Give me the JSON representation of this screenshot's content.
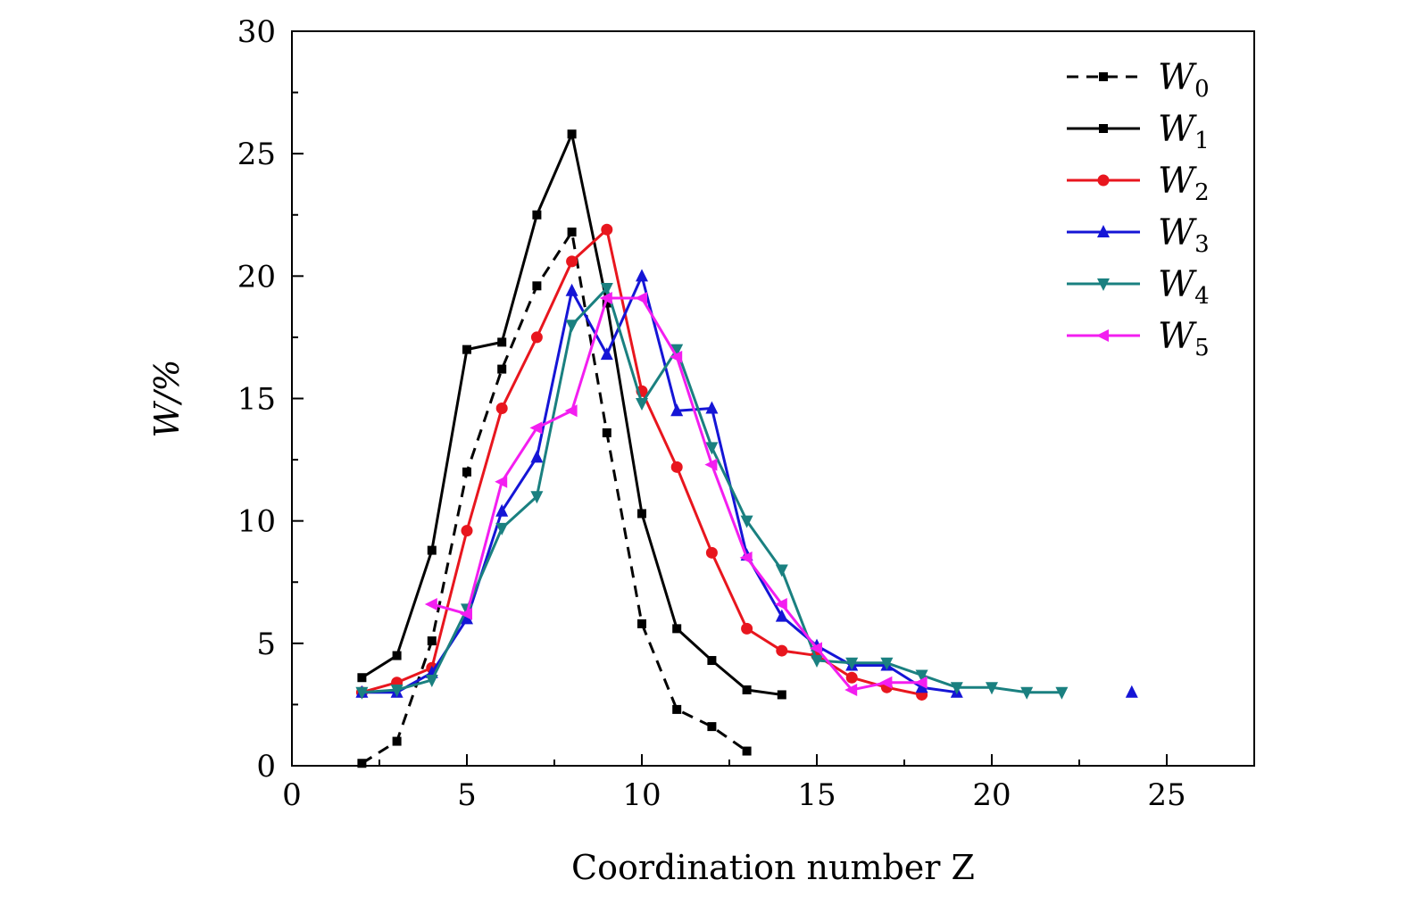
{
  "chart_data": {
    "type": "line",
    "title": "",
    "xlabel": "Coordination number Z",
    "ylabel": "W/%",
    "xlim": [
      0,
      27.5
    ],
    "ylim": [
      0,
      30
    ],
    "xticks": [
      0,
      5,
      10,
      15,
      20,
      25
    ],
    "yticks": [
      0,
      5,
      10,
      15,
      20,
      25,
      30
    ],
    "legend_position": "top-right",
    "series": [
      {
        "name": "W0",
        "base": "W",
        "sub": "0",
        "color": "#000000",
        "dash": true,
        "marker": "square",
        "x": [
          2,
          3,
          4,
          5,
          6,
          7,
          8,
          9,
          10,
          11,
          12,
          13
        ],
        "y": [
          0.1,
          1.0,
          5.1,
          12.0,
          16.2,
          19.6,
          21.8,
          13.6,
          5.8,
          2.3,
          1.6,
          0.6
        ]
      },
      {
        "name": "W1",
        "base": "W",
        "sub": "1",
        "color": "#000000",
        "dash": false,
        "marker": "square",
        "x": [
          2,
          3,
          4,
          5,
          6,
          7,
          8,
          9,
          10,
          11,
          12,
          13,
          14
        ],
        "y": [
          3.6,
          4.5,
          8.8,
          17.0,
          17.3,
          22.5,
          25.8,
          18.9,
          10.3,
          5.6,
          4.3,
          3.1,
          2.9
        ]
      },
      {
        "name": "W2",
        "base": "W",
        "sub": "2",
        "color": "#e8161e",
        "dash": false,
        "marker": "circle",
        "x": [
          2,
          3,
          4,
          5,
          6,
          7,
          8,
          9,
          10,
          11,
          12,
          13,
          14,
          15,
          16,
          17,
          18
        ],
        "y": [
          3.0,
          3.4,
          4.0,
          9.6,
          14.6,
          17.5,
          20.6,
          21.9,
          15.3,
          12.2,
          8.7,
          5.6,
          4.7,
          4.5,
          3.6,
          3.2,
          2.9
        ]
      },
      {
        "name": "W3",
        "base": "W",
        "sub": "3",
        "color": "#1515d6",
        "dash": false,
        "marker": "triangle-up",
        "x": [
          2,
          3,
          4,
          5,
          6,
          7,
          8,
          9,
          10,
          11,
          12,
          13,
          14,
          15,
          16,
          17,
          18,
          19,
          24
        ],
        "y": [
          3.0,
          3.0,
          3.8,
          6.0,
          10.4,
          12.6,
          19.4,
          16.8,
          20.0,
          14.5,
          14.6,
          8.6,
          6.1,
          4.9,
          4.1,
          4.1,
          3.2,
          3.0,
          3.0
        ]
      },
      {
        "name": "W4",
        "base": "W",
        "sub": "4",
        "color": "#1a8080",
        "dash": false,
        "marker": "triangle-down",
        "x": [
          2,
          3,
          4,
          5,
          6,
          7,
          8,
          9,
          10,
          11,
          12,
          13,
          14,
          15,
          16,
          17,
          18,
          19,
          20,
          21,
          22
        ],
        "y": [
          3.0,
          3.1,
          3.5,
          6.4,
          9.7,
          11.0,
          18.0,
          19.5,
          14.8,
          17.0,
          13.0,
          10.0,
          8.0,
          4.3,
          4.2,
          4.2,
          3.7,
          3.2,
          3.2,
          3.0,
          3.0
        ]
      },
      {
        "name": "W5",
        "base": "W",
        "sub": "5",
        "color": "#f31ef0",
        "dash": false,
        "marker": "triangle-left",
        "x": [
          4,
          5,
          6,
          7,
          8,
          9,
          10,
          11,
          12,
          13,
          14,
          15,
          16,
          17,
          18
        ],
        "y": [
          6.6,
          6.2,
          11.6,
          13.8,
          14.5,
          19.1,
          19.1,
          16.7,
          12.3,
          8.5,
          6.6,
          4.8,
          3.1,
          3.4,
          3.4
        ]
      }
    ]
  }
}
